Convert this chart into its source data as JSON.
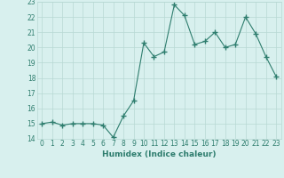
{
  "x": [
    0,
    1,
    2,
    3,
    4,
    5,
    6,
    7,
    8,
    9,
    10,
    11,
    12,
    13,
    14,
    15,
    16,
    17,
    18,
    19,
    20,
    21,
    22,
    23
  ],
  "y": [
    15.0,
    15.1,
    14.9,
    15.0,
    15.0,
    15.0,
    14.9,
    14.1,
    15.5,
    16.5,
    20.3,
    19.4,
    19.7,
    22.8,
    22.1,
    20.2,
    20.4,
    21.0,
    20.0,
    20.2,
    22.0,
    20.9,
    19.4,
    18.1
  ],
  "line_color": "#2e7d6e",
  "marker": "+",
  "marker_size": 4,
  "bg_color": "#d8f0ee",
  "grid_color": "#b8d8d4",
  "xlabel": "Humidex (Indice chaleur)",
  "xlim": [
    -0.5,
    23.5
  ],
  "ylim": [
    14,
    23
  ],
  "yticks": [
    14,
    15,
    16,
    17,
    18,
    19,
    20,
    21,
    22,
    23
  ],
  "xticks": [
    0,
    1,
    2,
    3,
    4,
    5,
    6,
    7,
    8,
    9,
    10,
    11,
    12,
    13,
    14,
    15,
    16,
    17,
    18,
    19,
    20,
    21,
    22,
    23
  ],
  "tick_fontsize": 5.5,
  "label_fontsize": 6.5
}
